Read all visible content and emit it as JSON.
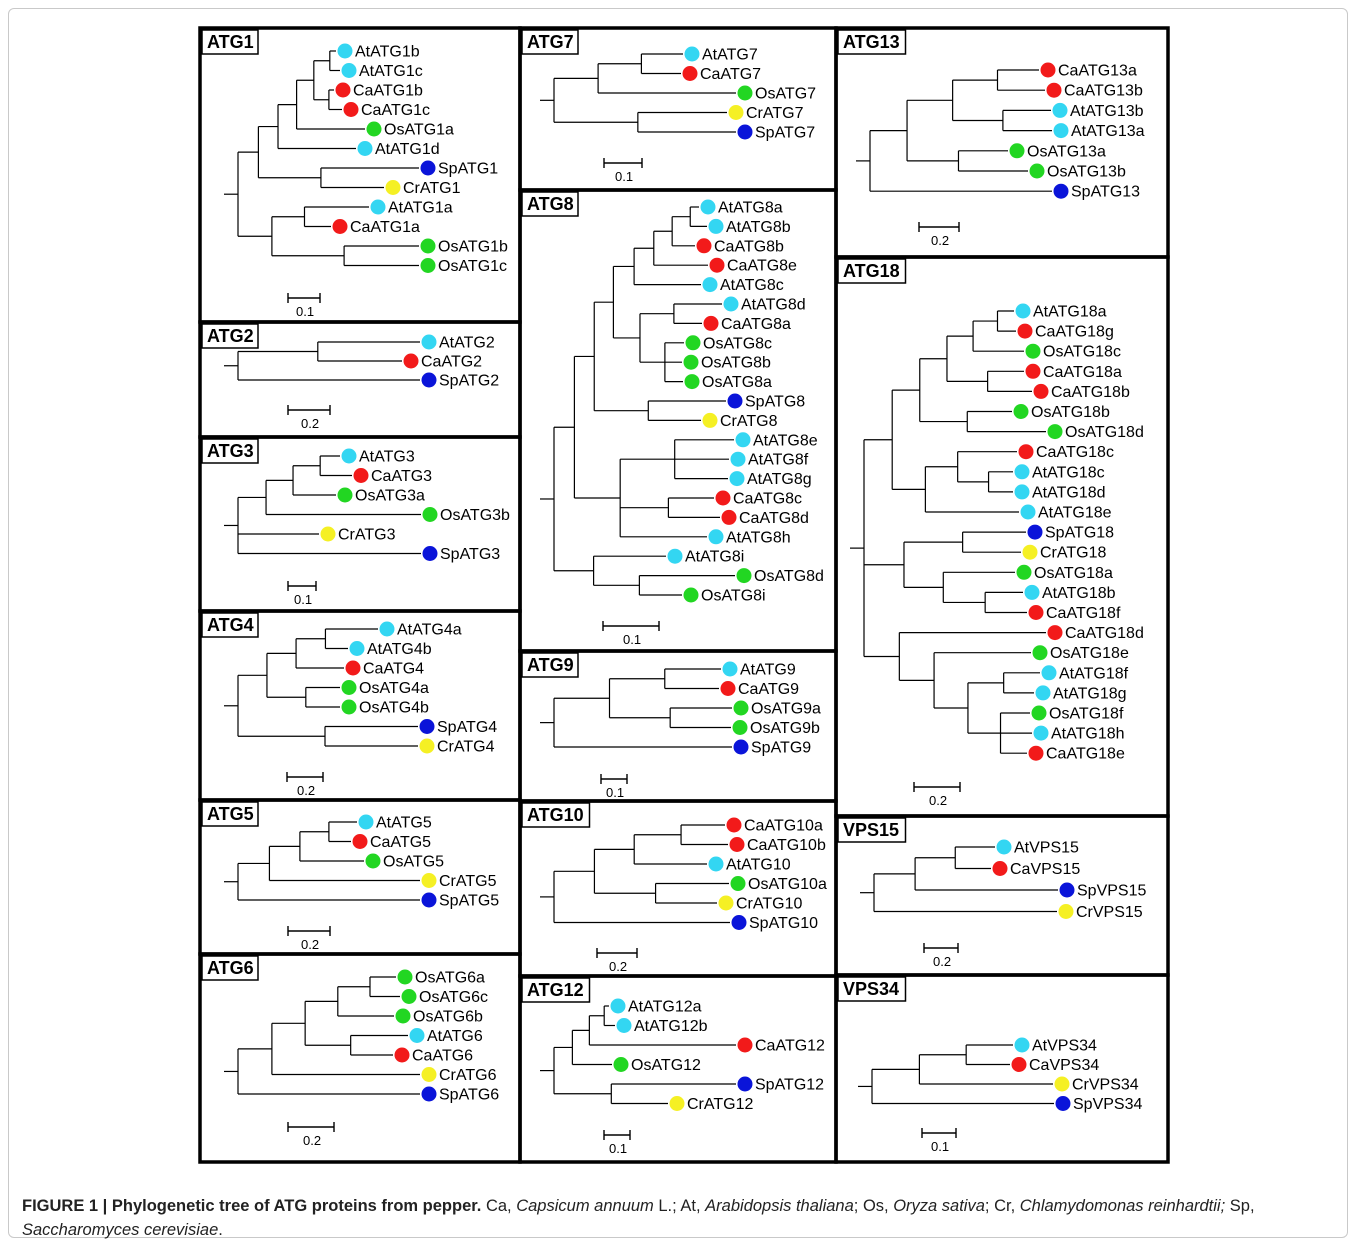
{
  "colors": {
    "At": "#33d6f2",
    "Ca": "#f21a1a",
    "Os": "#22d622",
    "Cr": "#f5f024",
    "Sp": "#0a14d9"
  },
  "panels": [
    {
      "title": "ATG1",
      "scale": "0.1",
      "leaves": [
        {
          "name": "AtATG1b",
          "sp": "At"
        },
        {
          "name": "AtATG1c",
          "sp": "At"
        },
        {
          "name": "CaATG1b",
          "sp": "Ca"
        },
        {
          "name": "CaATG1c",
          "sp": "Ca"
        },
        {
          "name": "OsATG1a",
          "sp": "Os"
        },
        {
          "name": "AtATG1d",
          "sp": "At"
        },
        {
          "name": "SpATG1",
          "sp": "Sp"
        },
        {
          "name": "CrATG1",
          "sp": "Cr"
        },
        {
          "name": "AtATG1a",
          "sp": "At"
        },
        {
          "name": "CaATG1a",
          "sp": "Ca"
        },
        {
          "name": "OsATG1b",
          "sp": "Os"
        },
        {
          "name": "OsATG1c",
          "sp": "Os"
        }
      ]
    },
    {
      "title": "ATG2",
      "scale": "0.2",
      "leaves": [
        {
          "name": "AtATG2",
          "sp": "At"
        },
        {
          "name": "CaATG2",
          "sp": "Ca"
        },
        {
          "name": "SpATG2",
          "sp": "Sp"
        }
      ]
    },
    {
      "title": "ATG3",
      "scale": "0.1",
      "leaves": [
        {
          "name": "AtATG3",
          "sp": "At"
        },
        {
          "name": "CaATG3",
          "sp": "Ca"
        },
        {
          "name": "OsATG3a",
          "sp": "Os"
        },
        {
          "name": "OsATG3b",
          "sp": "Os"
        },
        {
          "name": "CrATG3",
          "sp": "Cr"
        },
        {
          "name": "SpATG3",
          "sp": "Sp"
        }
      ]
    },
    {
      "title": "ATG4",
      "scale": "0.2",
      "leaves": [
        {
          "name": "AtATG4a",
          "sp": "At"
        },
        {
          "name": "AtATG4b",
          "sp": "At"
        },
        {
          "name": "CaATG4",
          "sp": "Ca"
        },
        {
          "name": "OsATG4a",
          "sp": "Os"
        },
        {
          "name": "OsATG4b",
          "sp": "Os"
        },
        {
          "name": "SpATG4",
          "sp": "Sp"
        },
        {
          "name": "CrATG4",
          "sp": "Cr"
        }
      ]
    },
    {
      "title": "ATG5",
      "scale": "0.2",
      "leaves": [
        {
          "name": "AtATG5",
          "sp": "At"
        },
        {
          "name": "CaATG5",
          "sp": "Ca"
        },
        {
          "name": "OsATG5",
          "sp": "Os"
        },
        {
          "name": "CrATG5",
          "sp": "Cr"
        },
        {
          "name": "SpATG5",
          "sp": "Sp"
        }
      ]
    },
    {
      "title": "ATG6",
      "scale": "0.2",
      "leaves": [
        {
          "name": "OsATG6a",
          "sp": "Os"
        },
        {
          "name": "OsATG6c",
          "sp": "Os"
        },
        {
          "name": "OsATG6b",
          "sp": "Os"
        },
        {
          "name": "AtATG6",
          "sp": "At"
        },
        {
          "name": "CaATG6",
          "sp": "Ca"
        },
        {
          "name": "CrATG6",
          "sp": "Cr"
        },
        {
          "name": "SpATG6",
          "sp": "Sp"
        }
      ]
    },
    {
      "title": "ATG7",
      "scale": "0.1",
      "leaves": [
        {
          "name": "AtATG7",
          "sp": "At"
        },
        {
          "name": "CaATG7",
          "sp": "Ca"
        },
        {
          "name": "OsATG7",
          "sp": "Os"
        },
        {
          "name": "CrATG7",
          "sp": "Cr"
        },
        {
          "name": "SpATG7",
          "sp": "Sp"
        }
      ]
    },
    {
      "title": "ATG8",
      "scale": "0.1",
      "leaves": [
        {
          "name": "AtATG8a",
          "sp": "At"
        },
        {
          "name": "AtATG8b",
          "sp": "At"
        },
        {
          "name": "CaATG8b",
          "sp": "Ca"
        },
        {
          "name": "CaATG8e",
          "sp": "Ca"
        },
        {
          "name": "AtATG8c",
          "sp": "At"
        },
        {
          "name": "AtATG8d",
          "sp": "At"
        },
        {
          "name": "CaATG8a",
          "sp": "Ca"
        },
        {
          "name": "OsATG8c",
          "sp": "Os"
        },
        {
          "name": "OsATG8b",
          "sp": "Os"
        },
        {
          "name": "OsATG8a",
          "sp": "Os"
        },
        {
          "name": "SpATG8",
          "sp": "Sp"
        },
        {
          "name": "CrATG8",
          "sp": "Cr"
        },
        {
          "name": "AtATG8e",
          "sp": "At"
        },
        {
          "name": "AtATG8f",
          "sp": "At"
        },
        {
          "name": "AtATG8g",
          "sp": "At"
        },
        {
          "name": "CaATG8c",
          "sp": "Ca"
        },
        {
          "name": "CaATG8d",
          "sp": "Ca"
        },
        {
          "name": "AtATG8h",
          "sp": "At"
        },
        {
          "name": "AtATG8i",
          "sp": "At"
        },
        {
          "name": "OsATG8d",
          "sp": "Os"
        },
        {
          "name": "OsATG8i",
          "sp": "Os"
        }
      ]
    },
    {
      "title": "ATG9",
      "scale": "0.1",
      "leaves": [
        {
          "name": "AtATG9",
          "sp": "At"
        },
        {
          "name": "CaATG9",
          "sp": "Ca"
        },
        {
          "name": "OsATG9a",
          "sp": "Os"
        },
        {
          "name": "OsATG9b",
          "sp": "Os"
        },
        {
          "name": "SpATG9",
          "sp": "Sp"
        }
      ]
    },
    {
      "title": "ATG10",
      "scale": "0.2",
      "leaves": [
        {
          "name": "CaATG10a",
          "sp": "Ca"
        },
        {
          "name": "CaATG10b",
          "sp": "Ca"
        },
        {
          "name": "AtATG10",
          "sp": "At"
        },
        {
          "name": "OsATG10a",
          "sp": "Os"
        },
        {
          "name": "CrATG10",
          "sp": "Cr"
        },
        {
          "name": "SpATG10",
          "sp": "Sp"
        }
      ]
    },
    {
      "title": "ATG12",
      "scale": "0.1",
      "leaves": [
        {
          "name": "AtATG12a",
          "sp": "At"
        },
        {
          "name": "AtATG12b",
          "sp": "At"
        },
        {
          "name": "CaATG12",
          "sp": "Ca"
        },
        {
          "name": "OsATG12",
          "sp": "Os"
        },
        {
          "name": "SpATG12",
          "sp": "Sp"
        },
        {
          "name": "CrATG12",
          "sp": "Cr"
        }
      ]
    },
    {
      "title": "ATG13",
      "scale": "0.2",
      "leaves": [
        {
          "name": "CaATG13a",
          "sp": "Ca"
        },
        {
          "name": "CaATG13b",
          "sp": "Ca"
        },
        {
          "name": "AtATG13b",
          "sp": "At"
        },
        {
          "name": "AtATG13a",
          "sp": "At"
        },
        {
          "name": "OsATG13a",
          "sp": "Os"
        },
        {
          "name": "OsATG13b",
          "sp": "Os"
        },
        {
          "name": "SpATG13",
          "sp": "Sp"
        }
      ]
    },
    {
      "title": "ATG18",
      "scale": "0.2",
      "leaves": [
        {
          "name": "AtATG18a",
          "sp": "At"
        },
        {
          "name": "CaATG18g",
          "sp": "Ca"
        },
        {
          "name": "OsATG18c",
          "sp": "Os"
        },
        {
          "name": "CaATG18a",
          "sp": "Ca"
        },
        {
          "name": "CaATG18b",
          "sp": "Ca"
        },
        {
          "name": "OsATG18b",
          "sp": "Os"
        },
        {
          "name": "OsATG18d",
          "sp": "Os"
        },
        {
          "name": "CaATG18c",
          "sp": "Ca"
        },
        {
          "name": "AtATG18c",
          "sp": "At"
        },
        {
          "name": "AtATG18d",
          "sp": "At"
        },
        {
          "name": "AtATG18e",
          "sp": "At"
        },
        {
          "name": "SpATG18",
          "sp": "Sp"
        },
        {
          "name": "CrATG18",
          "sp": "Cr"
        },
        {
          "name": "OsATG18a",
          "sp": "Os"
        },
        {
          "name": "AtATG18b",
          "sp": "At"
        },
        {
          "name": "CaATG18f",
          "sp": "Ca"
        },
        {
          "name": "CaATG18d",
          "sp": "Ca"
        },
        {
          "name": "OsATG18e",
          "sp": "Os"
        },
        {
          "name": "AtATG18f",
          "sp": "At"
        },
        {
          "name": "AtATG18g",
          "sp": "At"
        },
        {
          "name": "OsATG18f",
          "sp": "Os"
        },
        {
          "name": "AtATG18h",
          "sp": "At"
        },
        {
          "name": "CaATG18e",
          "sp": "Ca"
        }
      ]
    },
    {
      "title": "VPS15",
      "scale": "0.2",
      "leaves": [
        {
          "name": "AtVPS15",
          "sp": "At"
        },
        {
          "name": "CaVPS15",
          "sp": "Ca"
        },
        {
          "name": "SpVPS15",
          "sp": "Sp"
        },
        {
          "name": "CrVPS15",
          "sp": "Cr"
        }
      ]
    },
    {
      "title": "VPS34",
      "scale": "0.1",
      "leaves": [
        {
          "name": "AtVPS34",
          "sp": "At"
        },
        {
          "name": "CaVPS34",
          "sp": "Ca"
        },
        {
          "name": "CrVPS34",
          "sp": "Cr"
        },
        {
          "name": "SpVPS34",
          "sp": "Sp"
        }
      ]
    }
  ],
  "caption": {
    "label": "FIGURE 1 | Phylogenetic tree of ATG proteins from pepper.",
    "parts": [
      {
        "t": " Ca, ",
        "i": false
      },
      {
        "t": "Capsicum annuum",
        "i": true
      },
      {
        "t": " L.; At, ",
        "i": false
      },
      {
        "t": "Arabidopsis thaliana",
        "i": true
      },
      {
        "t": "; Os, ",
        "i": false
      },
      {
        "t": "Oryza sativa",
        "i": true
      },
      {
        "t": "; Cr, ",
        "i": false
      },
      {
        "t": "Chlamydomonas reinhardtii;",
        "i": true
      },
      {
        "t": " Sp, ",
        "i": false
      },
      {
        "t": "Saccharomyces cerevisiae",
        "i": true
      },
      {
        "t": ".",
        "i": false
      }
    ]
  }
}
